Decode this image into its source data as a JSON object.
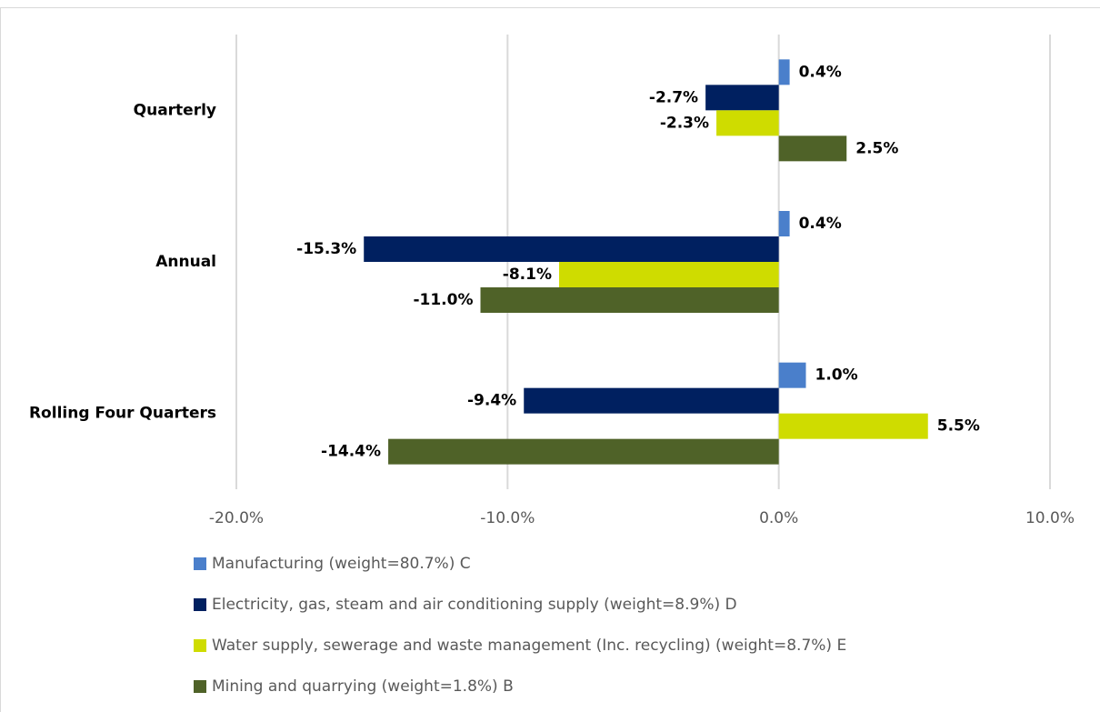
{
  "chart_data": {
    "type": "hbar",
    "categories": [
      "Quarterly",
      "Annual",
      "Rolling Four Quarters"
    ],
    "series": [
      {
        "name": "Manufacturing (weight=80.7%) C",
        "color": "#4a7fcb",
        "values": [
          0.4,
          0.4,
          1.0
        ],
        "value_labels": [
          "0.4%",
          "0.4%",
          "1.0%"
        ]
      },
      {
        "name": "Electricity, gas, steam and air conditioning supply (weight=8.9%) D",
        "color": "#002060",
        "values": [
          -2.7,
          -15.3,
          -9.4
        ],
        "value_labels": [
          "-2.7%",
          "-15.3%",
          "-9.4%"
        ]
      },
      {
        "name": "Water supply, sewerage and waste management (Inc. recycling) (weight=8.7%) E",
        "color": "#cfdc00",
        "values": [
          -2.3,
          -8.1,
          5.5
        ],
        "value_labels": [
          "-2.3%",
          "-8.1%",
          "5.5%"
        ]
      },
      {
        "name": "Mining and quarrying (weight=1.8%) B",
        "color": "#4f6228",
        "values": [
          2.5,
          -11.0,
          -14.4
        ],
        "value_labels": [
          "2.5%",
          "-11.0%",
          "-14.4%"
        ]
      }
    ],
    "xlim": [
      -20,
      10
    ],
    "xticks": [
      {
        "value": -20,
        "label": "-20.0%"
      },
      {
        "value": -10,
        "label": "-10.0%"
      },
      {
        "value": 0,
        "label": "0.0%"
      },
      {
        "value": 10,
        "label": "10.0%"
      }
    ],
    "grid": true
  }
}
